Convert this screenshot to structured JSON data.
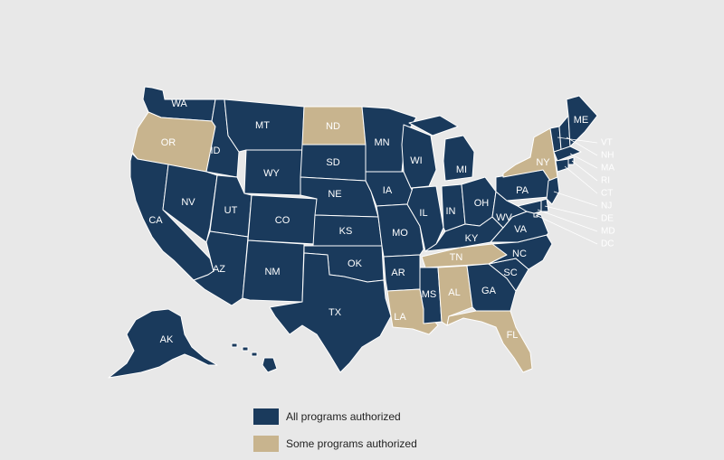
{
  "colors": {
    "background": "#e8e8e8",
    "all": "#1a3a5c",
    "some": "#c8b48e",
    "border": "#ffffff"
  },
  "legend": {
    "all_label": "All programs authorized",
    "some_label": "Some programs authorized"
  },
  "states": [
    {
      "abbr": "WA",
      "status": "all"
    },
    {
      "abbr": "OR",
      "status": "some"
    },
    {
      "abbr": "CA",
      "status": "all"
    },
    {
      "abbr": "ID",
      "status": "all"
    },
    {
      "abbr": "NV",
      "status": "all"
    },
    {
      "abbr": "MT",
      "status": "all"
    },
    {
      "abbr": "WY",
      "status": "all"
    },
    {
      "abbr": "UT",
      "status": "all"
    },
    {
      "abbr": "AZ",
      "status": "all"
    },
    {
      "abbr": "CO",
      "status": "all"
    },
    {
      "abbr": "NM",
      "status": "all"
    },
    {
      "abbr": "ND",
      "status": "some"
    },
    {
      "abbr": "SD",
      "status": "all"
    },
    {
      "abbr": "NE",
      "status": "all"
    },
    {
      "abbr": "KS",
      "status": "all"
    },
    {
      "abbr": "OK",
      "status": "all"
    },
    {
      "abbr": "TX",
      "status": "all"
    },
    {
      "abbr": "MN",
      "status": "all"
    },
    {
      "abbr": "IA",
      "status": "all"
    },
    {
      "abbr": "MO",
      "status": "all"
    },
    {
      "abbr": "AR",
      "status": "all"
    },
    {
      "abbr": "LA",
      "status": "some"
    },
    {
      "abbr": "WI",
      "status": "all"
    },
    {
      "abbr": "IL",
      "status": "all"
    },
    {
      "abbr": "MI",
      "status": "all"
    },
    {
      "abbr": "IN",
      "status": "all"
    },
    {
      "abbr": "OH",
      "status": "all"
    },
    {
      "abbr": "KY",
      "status": "all"
    },
    {
      "abbr": "TN",
      "status": "some"
    },
    {
      "abbr": "MS",
      "status": "all"
    },
    {
      "abbr": "AL",
      "status": "some"
    },
    {
      "abbr": "GA",
      "status": "all"
    },
    {
      "abbr": "FL",
      "status": "some"
    },
    {
      "abbr": "SC",
      "status": "all"
    },
    {
      "abbr": "NC",
      "status": "all"
    },
    {
      "abbr": "VA",
      "status": "all"
    },
    {
      "abbr": "WV",
      "status": "all"
    },
    {
      "abbr": "PA",
      "status": "all"
    },
    {
      "abbr": "NY",
      "status": "some"
    },
    {
      "abbr": "VT",
      "status": "all"
    },
    {
      "abbr": "NH",
      "status": "all"
    },
    {
      "abbr": "ME",
      "status": "all"
    },
    {
      "abbr": "MA",
      "status": "all"
    },
    {
      "abbr": "RI",
      "status": "all"
    },
    {
      "abbr": "CT",
      "status": "all"
    },
    {
      "abbr": "NJ",
      "status": "all"
    },
    {
      "abbr": "DE",
      "status": "all"
    },
    {
      "abbr": "MD",
      "status": "all"
    },
    {
      "abbr": "DC",
      "status": "all"
    },
    {
      "abbr": "AK",
      "status": "all"
    },
    {
      "abbr": "HI",
      "status": "all"
    }
  ]
}
